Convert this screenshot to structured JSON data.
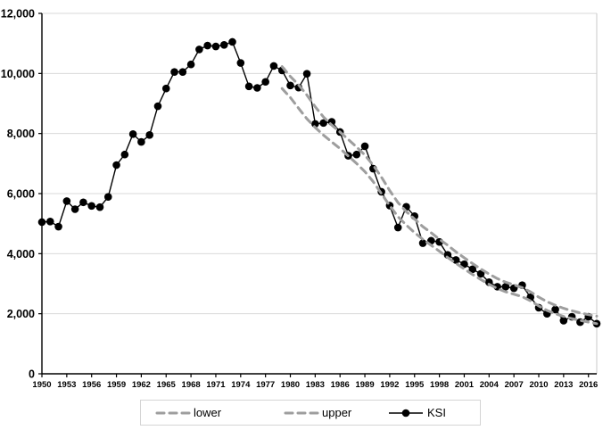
{
  "chart": {
    "title": "",
    "y_axis": {
      "tick_labels": [
        "0",
        "2,000",
        "4,000",
        "6,000",
        "8,000",
        "10,000",
        "12,000"
      ],
      "tick_values": [
        0,
        2000,
        4000,
        6000,
        8000,
        10000,
        12000
      ]
    },
    "x_axis": {
      "tick_years": [
        1950,
        1953,
        1956,
        1959,
        1962,
        1965,
        1968,
        1971,
        1974,
        1977,
        1980,
        1983,
        1986,
        1989,
        1992,
        1995,
        1998,
        2001,
        2004,
        2007,
        2010,
        2013,
        2016
      ]
    },
    "legend": {
      "items": [
        {
          "label": "lower",
          "style": "dashed",
          "color": "#9e9e9e"
        },
        {
          "label": "upper",
          "style": "dashed",
          "color": "#9e9e9e"
        },
        {
          "label": "KSI",
          "style": "solid-with-marker",
          "color": "#000000"
        }
      ]
    },
    "colors": {
      "ksi_line": "#000000",
      "band_line": "#9e9e9e",
      "gridline": "#d9d9d9",
      "axis": "#000000",
      "right_border": "#c9c9c9"
    }
  },
  "chart_data": {
    "type": "line",
    "title": "",
    "xlabel": "",
    "ylabel": "",
    "ylim": [
      0,
      12000
    ],
    "xlim": [
      1950,
      2017
    ],
    "grid": "horizontal",
    "legend_position": "bottom-center",
    "x": [
      1950,
      1951,
      1952,
      1953,
      1954,
      1955,
      1956,
      1957,
      1958,
      1959,
      1960,
      1961,
      1962,
      1963,
      1964,
      1965,
      1966,
      1967,
      1968,
      1969,
      1970,
      1971,
      1972,
      1973,
      1974,
      1975,
      1976,
      1977,
      1978,
      1979,
      1980,
      1981,
      1982,
      1983,
      1984,
      1985,
      1986,
      1987,
      1988,
      1989,
      1990,
      1991,
      1992,
      1993,
      1994,
      1995,
      1996,
      1997,
      1998,
      1999,
      2000,
      2001,
      2002,
      2003,
      2004,
      2005,
      2006,
      2007,
      2008,
      2009,
      2010,
      2011,
      2012,
      2013,
      2014,
      2015,
      2016,
      2017
    ],
    "series": [
      {
        "name": "KSI",
        "style": "solid-with-markers",
        "color": "#000000",
        "x_start": 1950,
        "values": [
          5050,
          5070,
          4900,
          5750,
          5480,
          5710,
          5590,
          5550,
          5890,
          6950,
          7300,
          7980,
          7720,
          7950,
          8910,
          9500,
          10050,
          10050,
          10300,
          10800,
          10930,
          10900,
          10950,
          11050,
          10350,
          9570,
          9520,
          9720,
          10250,
          10100,
          9600,
          9530,
          9990,
          8320,
          8350,
          8390,
          8050,
          7260,
          7300,
          7575,
          6830,
          6060,
          5600,
          4870,
          5560,
          5250,
          4350,
          4430,
          4390,
          3960,
          3790,
          3650,
          3480,
          3330,
          3050,
          2900,
          2900,
          2850,
          2950,
          2550,
          2200,
          2000,
          2140,
          1770,
          1900,
          1720,
          1900,
          1670
        ]
      },
      {
        "name": "upper",
        "style": "dashed",
        "color": "#9e9e9e",
        "x_start": 1979,
        "values": [
          10230,
          9900,
          9620,
          9280,
          8890,
          8550,
          8280,
          8050,
          7800,
          7550,
          7280,
          6950,
          6550,
          6100,
          5700,
          5400,
          5150,
          4900,
          4700,
          4480,
          4280,
          4060,
          3860,
          3670,
          3490,
          3320,
          3170,
          3050,
          2960,
          2870,
          2730,
          2550,
          2400,
          2280,
          2180,
          2100,
          2030,
          1970,
          1920
        ]
      },
      {
        "name": "lower",
        "style": "dashed",
        "color": "#9e9e9e",
        "x_start": 1979,
        "values": [
          9500,
          9200,
          8840,
          8490,
          8200,
          7950,
          7720,
          7500,
          7250,
          7000,
          6730,
          6400,
          6000,
          5600,
          5230,
          4950,
          4700,
          4480,
          4280,
          4080,
          3870,
          3680,
          3490,
          3310,
          3140,
          2980,
          2840,
          2730,
          2650,
          2570,
          2430,
          2260,
          2110,
          2000,
          1910,
          1840,
          1780,
          1720,
          1670
        ]
      }
    ]
  }
}
